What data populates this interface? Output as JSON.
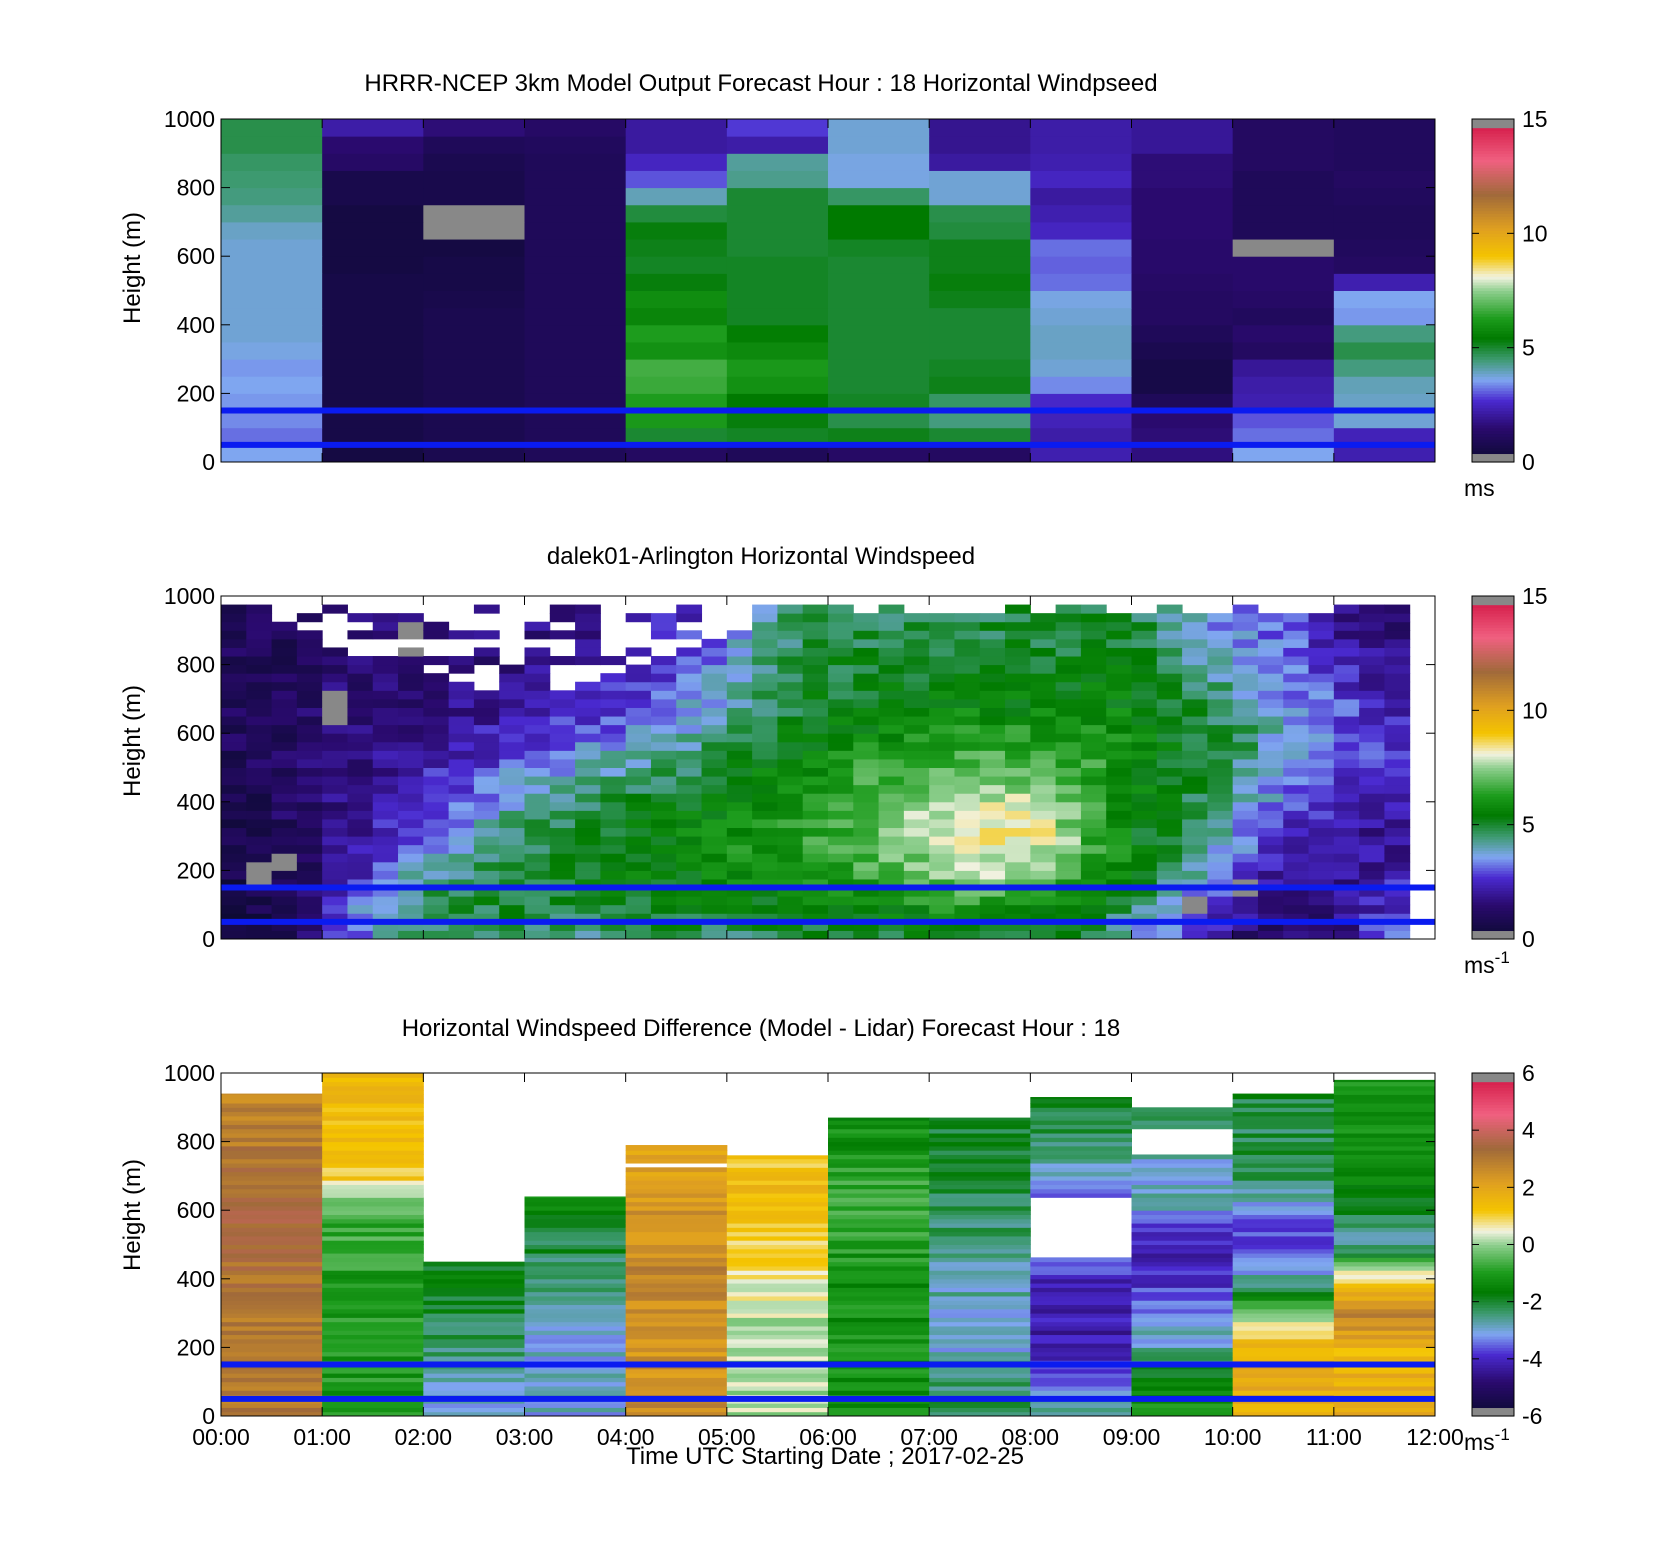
{
  "colors": {
    "background": "#ffffff",
    "reference_line": "#0a1bf0",
    "missing": "#888888"
  },
  "shared_xaxis": {
    "tick_labels": [
      "00:00",
      "01:00",
      "02:00",
      "03:00",
      "04:00",
      "05:00",
      "06:00",
      "07:00",
      "08:00",
      "09:00",
      "10:00",
      "11:00",
      "12:00"
    ],
    "xlabel": "Time UTC  Starting Date ; 2017-02-25",
    "xlim_hours": [
      0,
      12
    ]
  },
  "colormap_speed": [
    [
      0.0,
      "#0a0a2e"
    ],
    [
      0.1,
      "#2a0a6e"
    ],
    [
      0.18,
      "#4a2ad0"
    ],
    [
      0.24,
      "#7fa6f0"
    ],
    [
      0.3,
      "#3d9a70"
    ],
    [
      0.36,
      "#007a00"
    ],
    [
      0.42,
      "#1d9c1d"
    ],
    [
      0.5,
      "#8fcf8f"
    ],
    [
      0.54,
      "#f2f2e0"
    ],
    [
      0.6,
      "#f4c400"
    ],
    [
      0.68,
      "#e0a020"
    ],
    [
      0.78,
      "#a06a3a"
    ],
    [
      0.88,
      "#f06080"
    ],
    [
      1.0,
      "#d01040"
    ]
  ],
  "colormap_diff": [
    [
      0.0,
      "#0a0a2e"
    ],
    [
      0.1,
      "#2a0a6e"
    ],
    [
      0.18,
      "#4a2ad0"
    ],
    [
      0.24,
      "#7fa6f0"
    ],
    [
      0.3,
      "#3d9a70"
    ],
    [
      0.36,
      "#007a00"
    ],
    [
      0.42,
      "#1d9c1d"
    ],
    [
      0.5,
      "#8fcf8f"
    ],
    [
      0.54,
      "#f2f2e0"
    ],
    [
      0.6,
      "#f4c400"
    ],
    [
      0.68,
      "#e0a020"
    ],
    [
      0.78,
      "#a06a3a"
    ],
    [
      0.88,
      "#f06080"
    ],
    [
      1.0,
      "#d01040"
    ]
  ],
  "chart_data": [
    {
      "type": "heatmap",
      "title": "HRRR-NCEP 3km Model Output   Forecast Hour : 18 Horizontal Windpseed",
      "ylabel": "Height (m)",
      "ylim": [
        0,
        1000
      ],
      "y_tick_labels": [
        "0",
        "200",
        "400",
        "600",
        "800",
        "1000"
      ],
      "x_tick_labels_shown": false,
      "reference_lines_m": [
        150,
        50
      ],
      "colorbar": {
        "range": [
          0,
          15
        ],
        "tick_labels": [
          "0",
          "5",
          "10",
          "15"
        ],
        "unit_text": "ms",
        "unit_superscript": ""
      },
      "columns_hour_start": [
        0,
        1,
        2,
        3,
        4,
        5,
        6,
        7,
        8,
        9,
        10,
        11
      ],
      "levels_m": [
        0,
        50,
        100,
        150,
        200,
        250,
        300,
        350,
        400,
        450,
        500,
        550,
        600,
        650,
        700,
        750,
        800,
        850,
        900,
        950,
        1000
      ],
      "values_ms": [
        [
          3.6,
          0.5,
          0.8,
          1.0,
          1.2,
          1.0,
          1.3,
          1.2,
          2.3,
          1.7,
          3.6,
          2.3
        ],
        [
          3.2,
          0.6,
          0.8,
          1.0,
          5.0,
          5.1,
          5.2,
          5.0,
          2.2,
          1.6,
          3.2,
          2.4
        ],
        [
          3.4,
          0.6,
          0.8,
          1.0,
          6.2,
          5.3,
          4.8,
          4.4,
          2.4,
          1.5,
          3.0,
          3.8
        ],
        [
          3.5,
          0.6,
          0.8,
          1.0,
          6.3,
          5.4,
          5.1,
          4.6,
          2.6,
          1.0,
          2.3,
          3.9
        ],
        [
          3.6,
          0.6,
          0.8,
          1.0,
          6.6,
          6.0,
          5.0,
          5.2,
          3.4,
          0.6,
          2.2,
          4.0
        ],
        [
          3.5,
          0.6,
          0.8,
          1.0,
          6.7,
          6.2,
          5.0,
          5.1,
          3.8,
          0.6,
          2.0,
          4.4
        ],
        [
          3.7,
          0.6,
          0.8,
          1.0,
          6.0,
          5.8,
          5.0,
          5.0,
          3.9,
          0.8,
          1.2,
          4.8
        ],
        [
          3.8,
          0.6,
          0.8,
          1.0,
          6.3,
          5.5,
          5.0,
          5.0,
          3.9,
          1.0,
          1.4,
          4.4
        ],
        [
          3.8,
          0.6,
          0.8,
          1.0,
          5.7,
          5.1,
          5.0,
          5.0,
          3.8,
          1.2,
          1.1,
          3.5
        ],
        [
          3.8,
          0.6,
          0.7,
          1.0,
          5.9,
          5.1,
          5.0,
          5.2,
          3.7,
          1.2,
          1.3,
          3.6
        ],
        [
          3.8,
          0.6,
          0.6,
          1.0,
          5.3,
          5.1,
          5.0,
          5.3,
          3.2,
          1.3,
          1.4,
          2.3
        ],
        [
          3.8,
          0.5,
          0.6,
          1.0,
          5.1,
          5.1,
          5.0,
          5.2,
          3.1,
          1.4,
          1.4,
          1.2
        ],
        [
          3.8,
          0.5,
          0.5,
          1.0,
          5.2,
          5.0,
          5.1,
          5.2,
          3.2,
          1.4,
          null,
          1.1
        ],
        [
          3.9,
          0.5,
          null,
          1.0,
          5.3,
          5.0,
          5.4,
          4.9,
          2.5,
          1.5,
          1.0,
          1.0
        ],
        [
          4.2,
          0.5,
          null,
          1.0,
          4.9,
          5.0,
          5.4,
          4.8,
          2.3,
          1.5,
          1.0,
          1.0
        ],
        [
          4.4,
          0.7,
          0.7,
          1.0,
          4.0,
          5.0,
          4.6,
          3.8,
          2.1,
          1.5,
          1.0,
          1.1
        ],
        [
          4.5,
          0.7,
          0.7,
          1.0,
          3.0,
          4.3,
          3.7,
          3.8,
          2.5,
          1.6,
          1.0,
          1.2
        ],
        [
          4.6,
          1.3,
          0.8,
          1.0,
          2.5,
          4.2,
          3.7,
          2.1,
          2.3,
          1.6,
          1.2,
          1.1
        ],
        [
          4.8,
          1.5,
          1.0,
          1.1,
          2.1,
          2.2,
          3.8,
          1.9,
          2.2,
          2.0,
          1.2,
          1.1
        ],
        [
          4.8,
          2.2,
          1.6,
          1.3,
          2.1,
          2.8,
          3.8,
          1.9,
          2.2,
          2.0,
          1.2,
          1.1
        ]
      ]
    },
    {
      "type": "heatmap",
      "title": "dalek01-Arlington  Horizontal Windspeed",
      "ylabel": "Height (m)",
      "ylim": [
        0,
        1000
      ],
      "y_tick_labels": [
        "0",
        "200",
        "400",
        "600",
        "800",
        "1000"
      ],
      "x_tick_labels_shown": false,
      "reference_lines_m": [
        150,
        50
      ],
      "colorbar": {
        "range": [
          0,
          15
        ],
        "tick_labels": [
          "0",
          "5",
          "10",
          "15"
        ],
        "unit_text": "ms",
        "unit_superscript": "-1"
      },
      "time_bin_minutes": 15,
      "time_bins": 48,
      "level_step_m": 25,
      "profile_anchor_hours": [
        0,
        0.5,
        1,
        1.5,
        2,
        2.5,
        3,
        3.5,
        4,
        4.5,
        5,
        5.5,
        6,
        6.5,
        7,
        7.5,
        8,
        8.5,
        9,
        9.5,
        10,
        10.5,
        11,
        11.5,
        12
      ],
      "profile_levels_m": [
        0,
        100,
        200,
        300,
        400,
        500,
        600,
        700,
        800,
        900,
        1000
      ],
      "profile_values_ms": [
        [
          0.6,
          0.6,
          0.7,
          0.8,
          0.9,
          1.0,
          1.0,
          1.0,
          1.0,
          0.9,
          1.1
        ],
        [
          0.8,
          0.7,
          0.8,
          0.9,
          1.0,
          1.1,
          1.1,
          1.0,
          1.0,
          1.0,
          1.2
        ],
        [
          2.2,
          1.8,
          1.5,
          1.5,
          1.6,
          1.5,
          1.5,
          1.4,
          1.4,
          1.5,
          1.8
        ],
        [
          3.4,
          4.0,
          2.5,
          2.3,
          2.0,
          1.8,
          1.6,
          1.6,
          1.5,
          1.6,
          2.2
        ],
        [
          4.6,
          4.8,
          4.0,
          3.3,
          2.8,
          2.3,
          2.0,
          1.6,
          1.5,
          1.6,
          2.0
        ],
        [
          4.8,
          5.0,
          4.5,
          4.0,
          3.4,
          2.8,
          2.2,
          1.8,
          1.6,
          1.6,
          2.0
        ],
        [
          4.6,
          5.0,
          5.0,
          4.6,
          4.2,
          3.3,
          2.6,
          2.0,
          1.8,
          1.6,
          1.9
        ],
        [
          4.2,
          5.0,
          5.2,
          5.1,
          4.6,
          3.8,
          3.0,
          2.4,
          2.0,
          1.8,
          2.0
        ],
        [
          4.8,
          5.2,
          5.4,
          5.2,
          4.9,
          4.2,
          3.4,
          2.8,
          2.2,
          2.0,
          2.2
        ],
        [
          4.8,
          5.3,
          5.6,
          5.6,
          5.3,
          4.6,
          3.8,
          3.2,
          2.8,
          2.4,
          2.6
        ],
        [
          4.6,
          5.4,
          5.8,
          5.9,
          5.6,
          5.2,
          4.6,
          4.0,
          3.6,
          3.2,
          3.0
        ],
        [
          4.8,
          5.5,
          6.0,
          6.3,
          6.0,
          5.5,
          5.2,
          4.8,
          4.6,
          4.4,
          4.2
        ],
        [
          5.0,
          5.7,
          6.3,
          6.6,
          6.4,
          6.0,
          5.6,
          5.2,
          5.0,
          4.8,
          4.6
        ],
        [
          5.0,
          5.8,
          6.7,
          7.2,
          7.0,
          6.5,
          5.8,
          5.3,
          5.1,
          4.9,
          4.7
        ],
        [
          5.1,
          6.0,
          7.2,
          8.0,
          7.6,
          6.8,
          6.0,
          5.4,
          5.1,
          4.9,
          4.8
        ],
        [
          5.1,
          6.2,
          7.8,
          8.7,
          8.0,
          7.0,
          6.2,
          5.5,
          5.1,
          4.9,
          4.8
        ],
        [
          5.0,
          6.0,
          7.4,
          8.6,
          7.8,
          6.9,
          6.2,
          5.5,
          5.1,
          4.9,
          4.8
        ],
        [
          5.0,
          5.6,
          6.6,
          7.0,
          6.8,
          6.6,
          6.2,
          5.6,
          5.2,
          5.0,
          4.8
        ],
        [
          3.6,
          4.6,
          5.6,
          5.6,
          5.6,
          5.8,
          5.8,
          5.6,
          5.2,
          5.0,
          5.0
        ],
        [
          3.0,
          3.6,
          4.2,
          4.8,
          5.0,
          5.2,
          5.3,
          5.2,
          4.6,
          4.2,
          4.0
        ],
        [
          1.6,
          2.4,
          3.2,
          3.8,
          4.2,
          4.6,
          4.8,
          4.4,
          3.8,
          3.4,
          3.6
        ],
        [
          1.2,
          1.4,
          1.8,
          2.6,
          3.2,
          3.6,
          3.8,
          3.6,
          3.3,
          3.2,
          3.3
        ],
        [
          1.4,
          1.6,
          1.8,
          2.0,
          2.5,
          3.0,
          3.3,
          3.0,
          2.6,
          2.0,
          1.8
        ],
        [
          3.2,
          2.6,
          2.2,
          2.0,
          2.3,
          2.6,
          2.6,
          2.2,
          1.8,
          1.5,
          1.2
        ],
        [
          3.4,
          2.8,
          2.4,
          2.2,
          2.2,
          2.4,
          2.5,
          2.1,
          1.6,
          1.4,
          1.2
        ]
      ],
      "data_end_hour": 11.75,
      "missing_ranges_hours_m": [
        [
          0.5,
          0.75,
          200,
          260
        ],
        [
          1.0,
          1.25,
          620,
          720
        ],
        [
          1.75,
          2.0,
          830,
          920
        ],
        [
          10.0,
          10.25,
          120,
          180
        ],
        [
          9.5,
          9.75,
          80,
          130
        ],
        [
          0.25,
          0.5,
          160,
          230
        ]
      ]
    },
    {
      "type": "heatmap",
      "title": "Horizontal Windspeed Difference (Model - Lidar) Forecast Hour : 18",
      "ylabel": "Height (m)",
      "ylim": [
        0,
        1000
      ],
      "y_tick_labels": [
        "0",
        "200",
        "400",
        "600",
        "800",
        "1000"
      ],
      "x_tick_labels_shown": true,
      "reference_lines_m": [
        150,
        50
      ],
      "colorbar": {
        "range": [
          -6,
          6
        ],
        "tick_labels": [
          "-6",
          "-4",
          "-2",
          "0",
          "2",
          "4",
          "6"
        ],
        "unit_text": "ms",
        "unit_superscript": "-1"
      },
      "columns_hour_start": [
        0,
        1,
        2,
        3,
        4,
        5,
        6,
        7,
        8,
        9,
        10,
        11
      ],
      "column_top_m": [
        940,
        1000,
        450,
        640,
        790,
        760,
        870,
        870,
        930,
        900,
        940,
        980
      ],
      "column_profiles": [
        {
          "levels_m": [
            0,
            200,
            400,
            600,
            800,
            940
          ],
          "values_ms": [
            3.0,
            3.0,
            3.2,
            3.4,
            3.0,
            2.8
          ]
        },
        {
          "levels_m": [
            0,
            200,
            400,
            600,
            700,
            1000
          ],
          "values_ms": [
            -1.2,
            -1.0,
            -1.0,
            -0.6,
            1.2,
            1.5
          ]
        },
        {
          "levels_m": [
            0,
            150,
            300,
            450
          ],
          "values_ms": [
            -3.0,
            -2.6,
            -2.0,
            -1.7
          ]
        },
        {
          "levels_m": [
            0,
            200,
            400,
            640
          ],
          "values_ms": [
            -3.0,
            -3.0,
            -2.5,
            -1.4
          ]
        },
        {
          "levels_m": [
            0,
            200,
            400,
            640,
            790
          ],
          "values_ms": [
            2.6,
            2.4,
            2.8,
            2.3,
            2.0
          ]
        },
        {
          "levels_m": [
            0,
            200,
            300,
            400,
            600,
            760
          ],
          "values_ms": [
            0.2,
            0.1,
            0.3,
            0.6,
            1.5,
            1.2
          ]
        },
        {
          "levels_m": [
            0,
            200,
            400,
            600,
            870
          ],
          "values_ms": [
            -1.2,
            -1.2,
            -1.3,
            -0.6,
            -1.4
          ]
        },
        {
          "levels_m": [
            0,
            200,
            400,
            600,
            870
          ],
          "values_ms": [
            -2.1,
            -2.9,
            -2.8,
            -2.2,
            -2.0
          ]
        },
        {
          "levels_m": [
            0,
            200,
            400,
            450,
            640,
            930
          ],
          "values_ms": [
            -2.6,
            -4.2,
            -4.2,
            -3.2,
            -3.4,
            -1.7
          ]
        },
        {
          "levels_m": [
            0,
            100,
            200,
            400,
            500,
            600,
            760,
            900
          ],
          "values_ms": [
            -1.0,
            -1.6,
            -2.7,
            -4.0,
            -4.2,
            -3.0,
            -2.8,
            -1.8
          ]
        },
        {
          "levels_m": [
            0,
            150,
            300,
            400,
            500,
            700,
            940
          ],
          "values_ms": [
            1.6,
            2.2,
            0.0,
            -2.8,
            -4.0,
            -2.3,
            -2.0
          ]
        },
        {
          "levels_m": [
            0,
            200,
            300,
            400,
            500,
            700,
            980
          ],
          "values_ms": [
            1.8,
            1.6,
            2.8,
            1.0,
            -2.8,
            -1.4,
            -1.2
          ]
        }
      ],
      "gaps_m": [
        [
          8,
          640,
          460
        ],
        [
          9,
          840,
          760
        ],
        [
          4,
          740,
          720
        ],
        [
          4,
          780,
          770
        ],
        [
          2,
          900,
          890
        ],
        [
          3,
          920,
          905
        ]
      ]
    }
  ]
}
